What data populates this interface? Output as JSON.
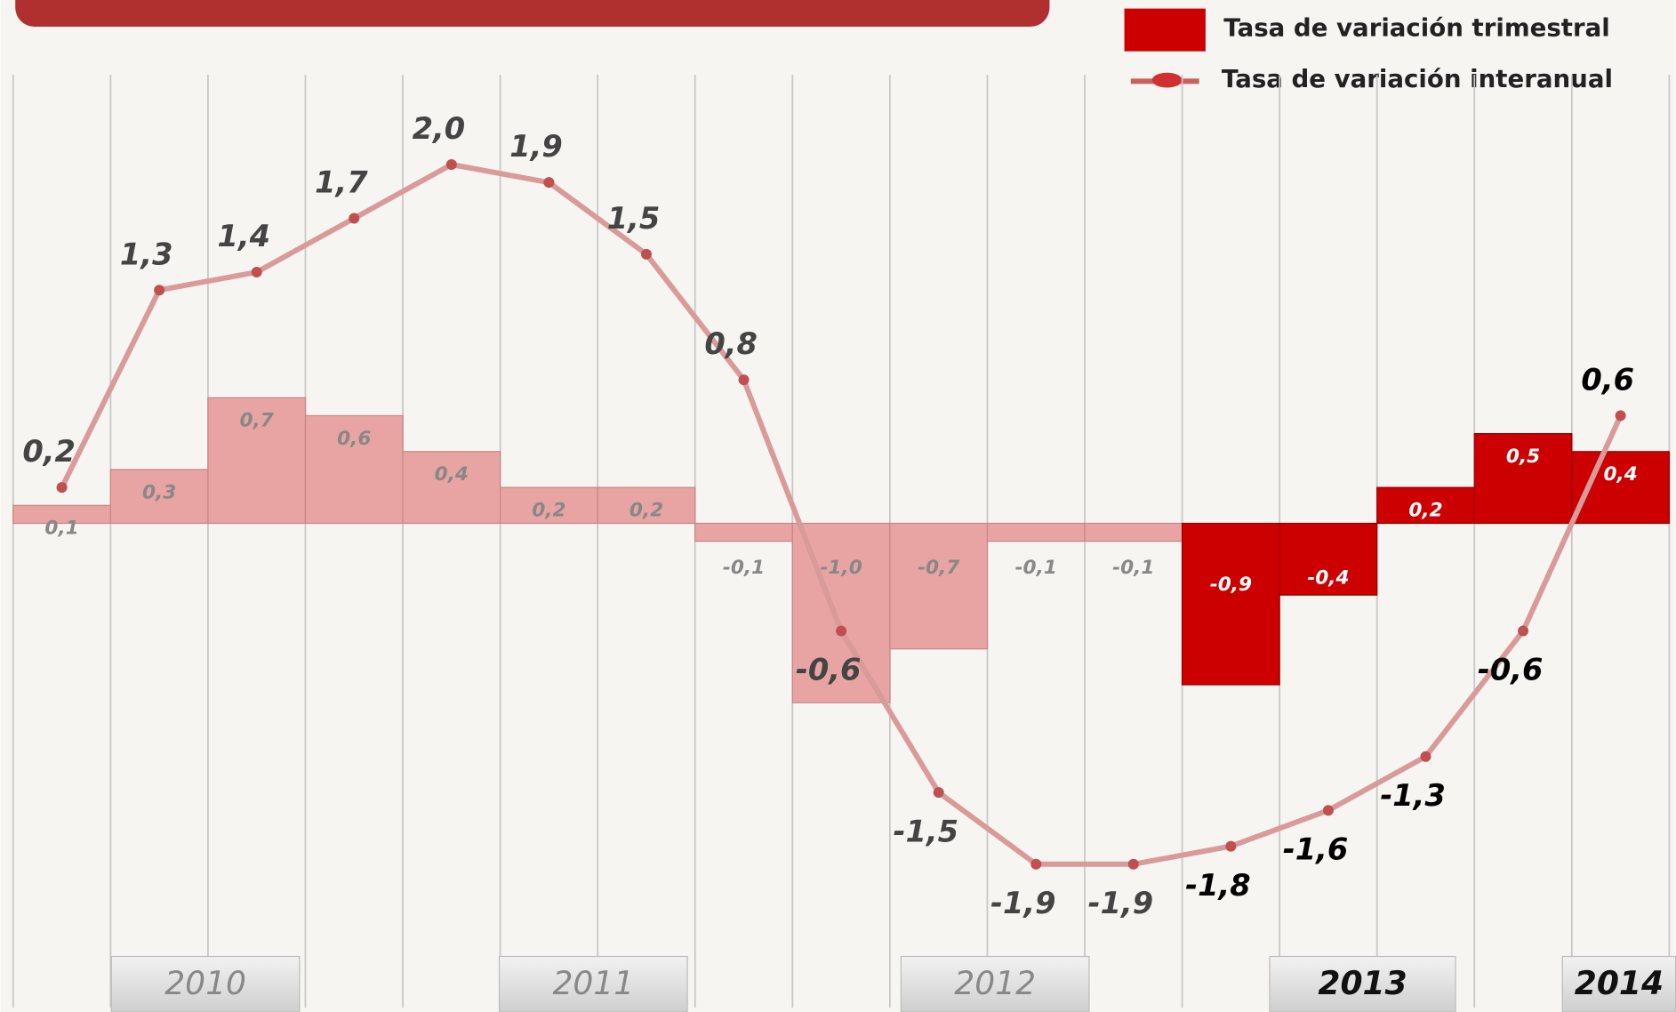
{
  "chart_data": {
    "type": "bar-line",
    "categories": [
      null,
      null,
      null,
      null,
      null,
      null,
      null,
      null,
      null,
      null,
      null,
      null,
      null,
      null,
      null,
      null,
      null
    ],
    "years": [
      "2010",
      "2011",
      "2012",
      "2013",
      "2014"
    ],
    "ylim": [
      -2.7,
      2.5
    ],
    "grid": true,
    "series": [
      {
        "name": "Tasa de variación trimestral",
        "kind": "bar",
        "color": "#cc0000",
        "colors": [
          "#e8a3a3",
          "#e8a3a3",
          "#e8a3a3",
          "#e8a3a3",
          "#e8a3a3",
          "#e8a3a3",
          "#e8a3a3",
          "#e8a3a3",
          "#e8a3a3",
          "#e8a3a3",
          "#e8a3a3",
          "#e8a3a3",
          "#cc0000",
          "#cc0000",
          "#cc0000",
          "#cc0000",
          "#cc0000"
        ],
        "values": [
          0.1,
          0.3,
          0.7,
          0.6,
          0.4,
          0.2,
          0.2,
          -0.1,
          -1.0,
          -0.7,
          -0.1,
          -0.1,
          -0.9,
          -0.4,
          0.2,
          0.5,
          0.4
        ],
        "value_labels": [
          "0,1",
          "0,3",
          "0,7",
          "0,6",
          "0,4",
          "0,2",
          "0,2",
          "-0,1",
          "-1,0",
          "-0,7",
          "-0,1",
          "-0,1",
          "-0,9",
          "-0,4",
          "0,2",
          "0,5",
          "0,4"
        ]
      },
      {
        "name": "Tasa de variación interanual",
        "kind": "line",
        "color": "#d99a9a",
        "values": [
          0.2,
          1.3,
          1.4,
          1.7,
          2.0,
          1.9,
          1.5,
          0.8,
          -0.6,
          -1.5,
          -1.9,
          -1.9,
          -1.8,
          -1.6,
          -1.3,
          -0.6,
          0.6
        ],
        "value_labels": [
          "0,2",
          "1,3",
          "1,4",
          "1,7",
          "2,0",
          "1,9",
          "1,5",
          "0,8",
          "-0,6",
          "-1,5",
          "-1,9",
          "-1,9",
          "-1,8",
          "-1,6",
          "-1,3",
          "-0,6",
          "0,6"
        ]
      }
    ]
  }
}
